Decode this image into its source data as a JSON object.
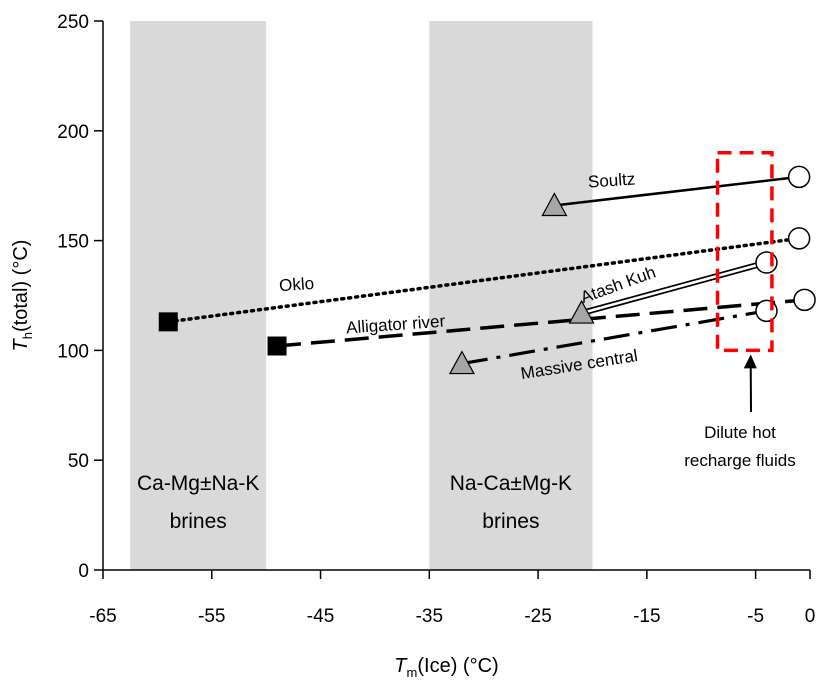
{
  "chart_data": {
    "type": "scatter",
    "xlim": [
      -65,
      0
    ],
    "ylim": [
      0,
      250
    ],
    "x_ticks": [
      -65,
      -55,
      -45,
      -35,
      -25,
      -15,
      -5,
      0
    ],
    "y_ticks": [
      0,
      50,
      100,
      150,
      200,
      250
    ],
    "xlabel": {
      "main": "T",
      "sub": "m",
      "rest": "(Ice) (°C)"
    },
    "ylabel": {
      "main": "T",
      "sub": "h",
      "rest": "(total) (°C)"
    },
    "grid": false,
    "regions": [
      {
        "label_lines": [
          "Ca-Mg±Na-K",
          "brines"
        ],
        "x_range": [
          -62.5,
          -50
        ],
        "color": "#d9d9d9"
      },
      {
        "label_lines": [
          "Na-Ca±Mg-K",
          "brines"
        ],
        "x_range": [
          -35,
          -20
        ],
        "color": "#d9d9d9"
      }
    ],
    "series": [
      {
        "name": "Soultz",
        "line_style": "solid",
        "points": [
          {
            "x": -23.5,
            "y": 166,
            "marker": "triangle"
          },
          {
            "x": -1,
            "y": 179,
            "marker": "circle"
          }
        ]
      },
      {
        "name": "Oklo",
        "line_style": "dotted",
        "points": [
          {
            "x": -59,
            "y": 113,
            "marker": "square"
          },
          {
            "x": -1,
            "y": 151,
            "marker": "circle"
          }
        ]
      },
      {
        "name": "Atash Kuh",
        "line_style": "double",
        "points": [
          {
            "x": -21,
            "y": 117,
            "marker": "triangle"
          },
          {
            "x": -4,
            "y": 140,
            "marker": "circle"
          }
        ]
      },
      {
        "name": "Alligator river",
        "line_style": "dashed",
        "points": [
          {
            "x": -49,
            "y": 102,
            "marker": "square"
          },
          {
            "x": -0.5,
            "y": 123,
            "marker": "circle"
          }
        ]
      },
      {
        "name": "Massive central",
        "line_style": "dash-dot",
        "points": [
          {
            "x": -32,
            "y": 94,
            "marker": "triangle"
          },
          {
            "x": -4,
            "y": 118,
            "marker": "circle"
          }
        ]
      }
    ],
    "annotation": {
      "text_lines": [
        "Dilute hot",
        "recharge fluids"
      ],
      "box_x": [
        -8.5,
        -3.5
      ],
      "box_y": [
        100,
        190
      ],
      "box_color": "#ff0000"
    }
  }
}
